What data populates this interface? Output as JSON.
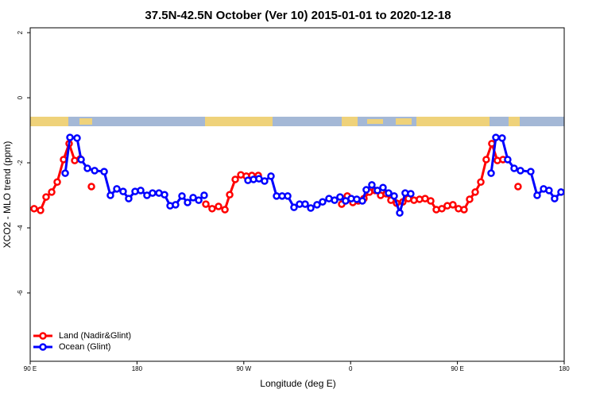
{
  "chart_data": {
    "type": "line",
    "title": "37.5N-42.5N October (Ver 10)   2015-01-01 to 2020-12-18",
    "xlabel": "Longitude (deg E)",
    "ylabel": "XCO2 - MLO trend (ppm)",
    "xlim": [
      90,
      540
    ],
    "ylim": [
      -8.1,
      2.15
    ],
    "xticks": [
      {
        "value": 90,
        "label": "90 E"
      },
      180,
      {
        "value": 270,
        "label": "90 W"
      },
      {
        "value": 360,
        "label": "0"
      },
      {
        "value": 450,
        "label": "90 E"
      },
      {
        "value": 540,
        "label": "180"
      }
    ],
    "yticks": [
      2,
      0,
      -2,
      -4,
      -6
    ],
    "legend": "bottomleft",
    "series": [
      {
        "name": "Land (Nadir&Glint)",
        "color": "#ff0000",
        "x": [
          93.3,
          98.7,
          103.4,
          108.1,
          112.8,
          118.1,
          122.8,
          127.5,
          132.2,
          null,
          141.6,
          null,
          238.0,
          243.3,
          248.7,
          254.1,
          258.1,
          262.8,
          267.5,
          272.1,
          276.8,
          282.2,
          null,
          352.5,
          357.2,
          361.9,
          366.5,
          371.2,
          375.9,
          380.6,
          385.3,
          390.0,
          394.0,
          398.7,
          404.0,
          408.7,
          413.4,
          418.1,
          422.8,
          427.5,
          432.2,
          436.9,
          441.5,
          446.2,
          450.9,
          455.6,
          460.3,
          465.0,
          469.7,
          474.3,
          479.0,
          483.7,
          488.4,
          null,
          501.1
        ],
        "values": [
          -3.41,
          -3.46,
          -3.05,
          -2.9,
          -2.59,
          -1.9,
          -1.41,
          -1.93,
          -1.88,
          null,
          -2.73,
          null,
          -3.27,
          -3.41,
          -3.34,
          -3.44,
          -2.98,
          -2.51,
          -2.37,
          -2.41,
          -2.39,
          -2.39,
          null,
          -3.27,
          -3.02,
          -3.22,
          -3.17,
          -3.1,
          -2.9,
          -2.85,
          -3.0,
          -2.95,
          -3.15,
          -3.24,
          -3.2,
          -3.1,
          -3.15,
          -3.12,
          -3.1,
          -3.17,
          -3.44,
          -3.41,
          -3.32,
          -3.29,
          -3.41,
          -3.44,
          -3.12,
          -2.9,
          -2.59,
          -1.9,
          -1.41,
          -1.93,
          -1.9,
          null,
          -2.73
        ]
      },
      {
        "name": "Ocean (Glint)",
        "color": "#0000ff",
        "x": [
          119.5,
          123.5,
          129.5,
          132.9,
          138.2,
          144.3,
          152.3,
          157.6,
          163.0,
          168.3,
          173.0,
          178.4,
          183.1,
          188.4,
          193.1,
          198.5,
          203.2,
          207.9,
          212.5,
          217.9,
          222.6,
          227.3,
          232.0,
          236.6,
          null,
          273.5,
          278.2,
          282.8,
          287.5,
          292.9,
          297.6,
          302.3,
          307.0,
          312.3,
          317.0,
          321.7,
          326.4,
          331.7,
          336.4,
          341.8,
          346.5,
          351.1,
          355.8,
          360.5,
          365.2,
          369.9,
          373.2,
          377.9,
          382.6,
          387.3,
          392.0,
          396.7,
          401.4,
          406.0,
          410.7,
          null,
          478.4,
          482.4,
          487.7,
          492.4,
          497.8,
          503.1,
          511.8,
          517.2,
          522.6,
          527.2,
          531.9,
          537.3
        ],
        "values": [
          -2.32,
          -1.22,
          -1.24,
          -1.9,
          -2.17,
          -2.24,
          -2.27,
          -3.0,
          -2.8,
          -2.88,
          -3.1,
          -2.88,
          -2.85,
          -3.0,
          -2.93,
          -2.93,
          -2.98,
          -3.32,
          -3.29,
          -3.02,
          -3.22,
          -3.07,
          -3.15,
          -3.0,
          null,
          -2.54,
          -2.51,
          -2.49,
          -2.56,
          -2.41,
          -3.02,
          -3.02,
          -3.02,
          -3.37,
          -3.27,
          -3.27,
          -3.39,
          -3.29,
          -3.2,
          -3.1,
          -3.15,
          -3.05,
          -3.17,
          -3.1,
          -3.12,
          -3.17,
          -2.83,
          -2.68,
          -2.85,
          -2.76,
          -2.93,
          -3.02,
          -3.54,
          -2.93,
          -2.95,
          null,
          -2.32,
          -1.22,
          -1.24,
          -1.9,
          -2.17,
          -2.24,
          -2.27,
          -3.0,
          -2.8,
          -2.85,
          -3.1,
          -2.9
        ]
      }
    ]
  }
}
